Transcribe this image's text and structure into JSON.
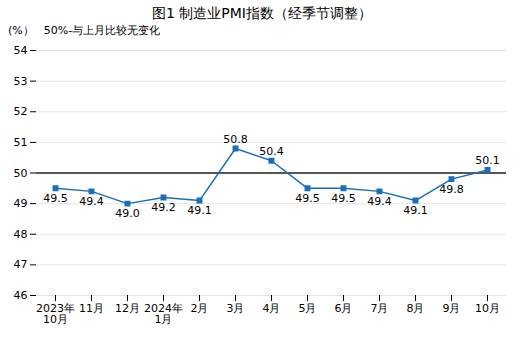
{
  "chart_data": {
    "type": "line",
    "title": "图1  制造业PMI指数（经季节调整）",
    "subtitle": "50%-与上月比较无变化",
    "ylabel": "(%）",
    "categories": [
      "2023年\n10月",
      "11月",
      "12月",
      "2024年\n1月",
      "2月",
      "3月",
      "4月",
      "5月",
      "6月",
      "7月",
      "8月",
      "9月",
      "10月"
    ],
    "values": [
      49.5,
      49.4,
      49.0,
      49.2,
      49.1,
      50.8,
      50.4,
      49.5,
      49.5,
      49.4,
      49.1,
      49.8,
      50.1
    ],
    "value_labels": [
      "49.5",
      "49.4",
      "49.0",
      "49.2",
      "49.1",
      "50.8",
      "50.4",
      "49.5",
      "49.5",
      "49.4",
      "49.1",
      "49.8",
      "50.1"
    ],
    "data_labels": true,
    "reference_line": 50,
    "color": "#1a6fba",
    "marker": "square",
    "ylim": [
      46,
      54
    ],
    "yticks": [
      46,
      47,
      48,
      49,
      50,
      51,
      52,
      53,
      54
    ],
    "grid": true
  }
}
